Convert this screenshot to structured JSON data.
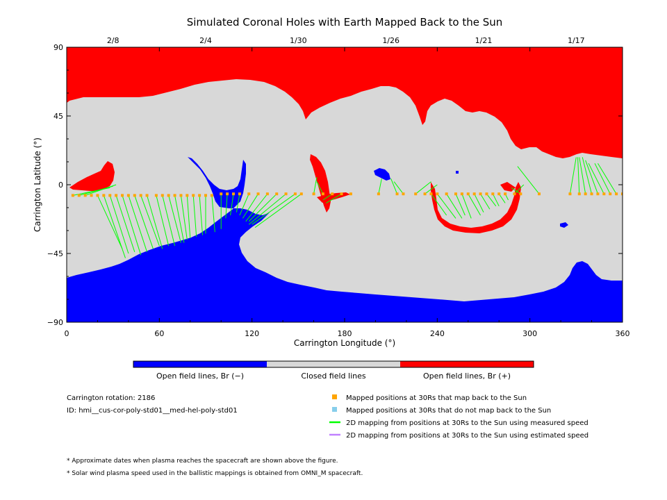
{
  "chart_data": {
    "type": "map",
    "title": "Simulated Coronal Holes with Earth Mapped Back to the Sun",
    "xlabel": "Carrington Longitude (°)",
    "ylabel": "Carrington Latitude (°)",
    "xlim": [
      0,
      360
    ],
    "ylim": [
      -90,
      90
    ],
    "x_ticks": [
      "0",
      "60",
      "120",
      "180",
      "240",
      "300",
      "360"
    ],
    "y_ticks": [
      "90",
      "45",
      "0",
      "−45",
      "−90"
    ],
    "date_ticks": [
      {
        "label": "2/8",
        "lon": 30
      },
      {
        "label": "2/4",
        "lon": 90
      },
      {
        "label": "1/30",
        "lon": 150
      },
      {
        "label": "1/26",
        "lon": 210
      },
      {
        "label": "1/21",
        "lon": 270
      },
      {
        "label": "1/17",
        "lon": 330
      }
    ],
    "colors": {
      "open_negative": "#0000ff",
      "closed": "#d8d8d8",
      "open_positive": "#ff0000",
      "mapped_point": "#ffa500",
      "unmapped_point": "#87ceeb",
      "measured_line": "#00ff00",
      "estimated_line": "#c080ff"
    },
    "colorbar": {
      "labels": [
        "Open field lines, Br (−)",
        "Closed field lines",
        "Open field lines, Br (+)"
      ]
    },
    "mapped_points": [
      {
        "lon": 4,
        "lat": -7
      },
      {
        "lon": 8,
        "lat": -7
      },
      {
        "lon": 12,
        "lat": -7
      },
      {
        "lon": 16,
        "lat": -7
      },
      {
        "lon": 20,
        "lat": -7
      },
      {
        "lon": 24,
        "lat": -7
      },
      {
        "lon": 28,
        "lat": -7
      },
      {
        "lon": 32,
        "lat": -7
      },
      {
        "lon": 36,
        "lat": -7
      },
      {
        "lon": 40,
        "lat": -7
      },
      {
        "lon": 44,
        "lat": -7
      },
      {
        "lon": 48,
        "lat": -7
      },
      {
        "lon": 52,
        "lat": -7
      },
      {
        "lon": 58,
        "lat": -7
      },
      {
        "lon": 62,
        "lat": -7
      },
      {
        "lon": 66,
        "lat": -7
      },
      {
        "lon": 70,
        "lat": -7
      },
      {
        "lon": 74,
        "lat": -7
      },
      {
        "lon": 78,
        "lat": -7
      },
      {
        "lon": 82,
        "lat": -7
      },
      {
        "lon": 86,
        "lat": -7
      },
      {
        "lon": 90,
        "lat": -7
      },
      {
        "lon": 94,
        "lat": -7
      },
      {
        "lon": 100,
        "lat": -6
      },
      {
        "lon": 104,
        "lat": -6
      },
      {
        "lon": 108,
        "lat": -6
      },
      {
        "lon": 112,
        "lat": -6
      },
      {
        "lon": 118,
        "lat": -6
      },
      {
        "lon": 124,
        "lat": -6
      },
      {
        "lon": 130,
        "lat": -6
      },
      {
        "lon": 136,
        "lat": -6
      },
      {
        "lon": 142,
        "lat": -6
      },
      {
        "lon": 148,
        "lat": -6
      },
      {
        "lon": 152,
        "lat": -6
      },
      {
        "lon": 160,
        "lat": -6
      },
      {
        "lon": 166,
        "lat": -6
      },
      {
        "lon": 172,
        "lat": -6
      },
      {
        "lon": 178,
        "lat": -6
      },
      {
        "lon": 184,
        "lat": -6
      },
      {
        "lon": 202,
        "lat": -6
      },
      {
        "lon": 214,
        "lat": -6
      },
      {
        "lon": 218,
        "lat": -6
      },
      {
        "lon": 226,
        "lat": -6
      },
      {
        "lon": 232,
        "lat": -6
      },
      {
        "lon": 236,
        "lat": -6
      },
      {
        "lon": 240,
        "lat": -6
      },
      {
        "lon": 246,
        "lat": -6
      },
      {
        "lon": 252,
        "lat": -6
      },
      {
        "lon": 256,
        "lat": -6
      },
      {
        "lon": 260,
        "lat": -6
      },
      {
        "lon": 264,
        "lat": -6
      },
      {
        "lon": 268,
        "lat": -6
      },
      {
        "lon": 272,
        "lat": -6
      },
      {
        "lon": 276,
        "lat": -6
      },
      {
        "lon": 280,
        "lat": -6
      },
      {
        "lon": 284,
        "lat": -6
      },
      {
        "lon": 290,
        "lat": -6
      },
      {
        "lon": 294,
        "lat": -6
      },
      {
        "lon": 306,
        "lat": -6
      },
      {
        "lon": 326,
        "lat": -6
      },
      {
        "lon": 332,
        "lat": -6
      },
      {
        "lon": 336,
        "lat": -6
      },
      {
        "lon": 340,
        "lat": -6
      },
      {
        "lon": 344,
        "lat": -6
      },
      {
        "lon": 348,
        "lat": -6
      },
      {
        "lon": 352,
        "lat": -6
      },
      {
        "lon": 356,
        "lat": -6
      },
      {
        "lon": 360,
        "lat": -6
      }
    ],
    "mapping_lines": [
      [
        4,
        -7,
        28,
        -2
      ],
      [
        8,
        -7,
        30,
        -1
      ],
      [
        12,
        -7,
        32,
        0
      ],
      [
        20,
        -7,
        36,
        -42
      ],
      [
        24,
        -7,
        38,
        -48
      ],
      [
        28,
        -7,
        40,
        -45
      ],
      [
        32,
        -7,
        44,
        -44
      ],
      [
        36,
        -7,
        48,
        -46
      ],
      [
        40,
        -7,
        52,
        -44
      ],
      [
        44,
        -7,
        56,
        -42
      ],
      [
        48,
        -7,
        60,
        -40
      ],
      [
        52,
        -7,
        62,
        -42
      ],
      [
        58,
        -7,
        66,
        -40
      ],
      [
        62,
        -7,
        70,
        -40
      ],
      [
        66,
        -7,
        74,
        -38
      ],
      [
        70,
        -7,
        76,
        -38
      ],
      [
        74,
        -7,
        78,
        -36
      ],
      [
        78,
        -7,
        80,
        -35
      ],
      [
        82,
        -7,
        84,
        -34
      ],
      [
        86,
        -7,
        88,
        -33
      ],
      [
        90,
        -7,
        90,
        -32
      ],
      [
        94,
        -7,
        96,
        -31
      ],
      [
        100,
        -6,
        100,
        -29
      ],
      [
        104,
        -6,
        103,
        -22
      ],
      [
        108,
        -6,
        106,
        -20
      ],
      [
        112,
        -6,
        110,
        -18
      ],
      [
        118,
        -6,
        112,
        -20
      ],
      [
        124,
        -6,
        114,
        -22
      ],
      [
        130,
        -6,
        116,
        -24
      ],
      [
        136,
        -6,
        118,
        -24
      ],
      [
        142,
        -6,
        118,
        -26
      ],
      [
        148,
        -6,
        120,
        -26
      ],
      [
        152,
        -6,
        122,
        -28
      ],
      [
        160,
        -6,
        162,
        5
      ],
      [
        166,
        -6,
        162,
        2
      ],
      [
        172,
        -6,
        166,
        -10
      ],
      [
        178,
        -6,
        168,
        -12
      ],
      [
        202,
        -6,
        204,
        4
      ],
      [
        214,
        -6,
        210,
        4
      ],
      [
        218,
        -6,
        212,
        2
      ],
      [
        226,
        -6,
        236,
        2
      ],
      [
        232,
        -6,
        240,
        0
      ],
      [
        236,
        -6,
        246,
        -20
      ],
      [
        240,
        -6,
        252,
        -22
      ],
      [
        246,
        -6,
        256,
        -22
      ],
      [
        252,
        -6,
        258,
        -20
      ],
      [
        256,
        -6,
        262,
        -22
      ],
      [
        260,
        -6,
        268,
        -20
      ],
      [
        264,
        -6,
        270,
        -18
      ],
      [
        268,
        -6,
        274,
        -16
      ],
      [
        272,
        -6,
        278,
        -14
      ],
      [
        276,
        -6,
        280,
        -14
      ],
      [
        280,
        -6,
        284,
        -12
      ],
      [
        284,
        -6,
        286,
        -10
      ],
      [
        290,
        -6,
        296,
        0
      ],
      [
        294,
        -6,
        288,
        -2
      ],
      [
        306,
        -6,
        292,
        12
      ],
      [
        326,
        -6,
        330,
        18
      ],
      [
        332,
        -6,
        331,
        18
      ],
      [
        336,
        -6,
        332,
        18
      ],
      [
        340,
        -6,
        334,
        18
      ],
      [
        344,
        -6,
        336,
        16
      ],
      [
        348,
        -6,
        338,
        14
      ],
      [
        352,
        -6,
        342,
        14
      ],
      [
        356,
        -6,
        344,
        14
      ]
    ],
    "legend": [
      {
        "symbol": "square",
        "color": "#ffa500",
        "label": "Mapped positions at 30Rs that map back to the Sun"
      },
      {
        "symbol": "square",
        "color": "#87ceeb",
        "label": "Mapped positions at 30Rs that do not map back to the Sun"
      },
      {
        "symbol": "line",
        "color": "#00ff00",
        "label": "2D mapping from positions at 30Rs to the Sun using measured speed"
      },
      {
        "symbol": "line",
        "color": "#c080ff",
        "label": "2D mapping from positions at 30Rs to the Sun using estimated speed"
      }
    ],
    "info": [
      "Carrington rotation: 2186",
      "ID: hmi__cus-cor-poly-std01__med-hel-poly-std01"
    ],
    "notes": [
      "* Approximate dates when plasma reaches the spacecraft are shown above the figure.",
      "* Solar wind plasma speed used in the ballistic mappings is obtained from OMNI_M spacecraft."
    ]
  }
}
